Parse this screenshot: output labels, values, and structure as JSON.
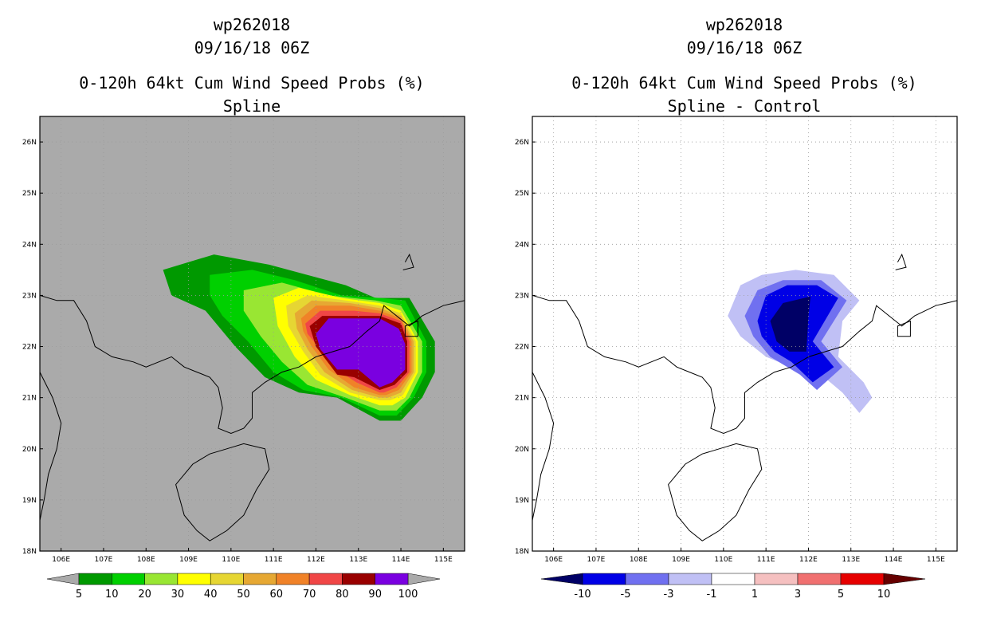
{
  "left_panel": {
    "title": [
      "wp262018",
      "09/16/18 06Z"
    ],
    "subtitle": [
      "0-120h 64kt Cum Wind Speed Probs (%)",
      "Spline"
    ]
  },
  "right_panel": {
    "title": [
      "wp262018",
      "09/16/18 06Z"
    ],
    "subtitle": [
      "0-120h 64kt Cum Wind Speed Probs (%)",
      "Spline - Control"
    ]
  },
  "chart_data": [
    {
      "type": "heatmap",
      "title": "0-120h 64kt Cum Wind Speed Probs (%)",
      "subtitle": "Spline",
      "x_ticks": [
        "106E",
        "107E",
        "108E",
        "109E",
        "110E",
        "111E",
        "112E",
        "113E",
        "114E",
        "115E"
      ],
      "y_ticks": [
        "18N",
        "19N",
        "20N",
        "21N",
        "22N",
        "23N",
        "24N",
        "25N",
        "26N"
      ],
      "xlim": [
        105.5,
        115.5
      ],
      "ylim": [
        18.0,
        26.5
      ],
      "background": "#aaaaaa",
      "colorbar": {
        "labels": [
          "5",
          "10",
          "20",
          "30",
          "40",
          "50",
          "60",
          "70",
          "80",
          "90",
          "100"
        ],
        "colors": [
          "#009900",
          "#00d000",
          "#99e633",
          "#ffff00",
          "#e6d633",
          "#e6a833",
          "#f08228",
          "#f04646",
          "#990000",
          "#7a00e0"
        ]
      }
    },
    {
      "type": "heatmap",
      "title": "0-120h 64kt Cum Wind Speed Probs (%)",
      "subtitle": "Spline - Control",
      "x_ticks": [
        "106E",
        "107E",
        "108E",
        "109E",
        "110E",
        "111E",
        "112E",
        "113E",
        "114E",
        "115E"
      ],
      "y_ticks": [
        "18N",
        "19N",
        "20N",
        "21N",
        "22N",
        "23N",
        "24N",
        "25N",
        "26N"
      ],
      "xlim": [
        105.5,
        115.5
      ],
      "ylim": [
        18.0,
        26.5
      ],
      "background": "#ffffff",
      "colorbar": {
        "labels": [
          "-10",
          "-5",
          "-3",
          "-1",
          "1",
          "3",
          "5",
          "10"
        ],
        "colors": [
          "#000066",
          "#0000e6",
          "#7070f0",
          "#c0c0f5",
          "#ffffff",
          "#f5c0c0",
          "#f07070",
          "#e60000",
          "#660000"
        ]
      }
    }
  ]
}
